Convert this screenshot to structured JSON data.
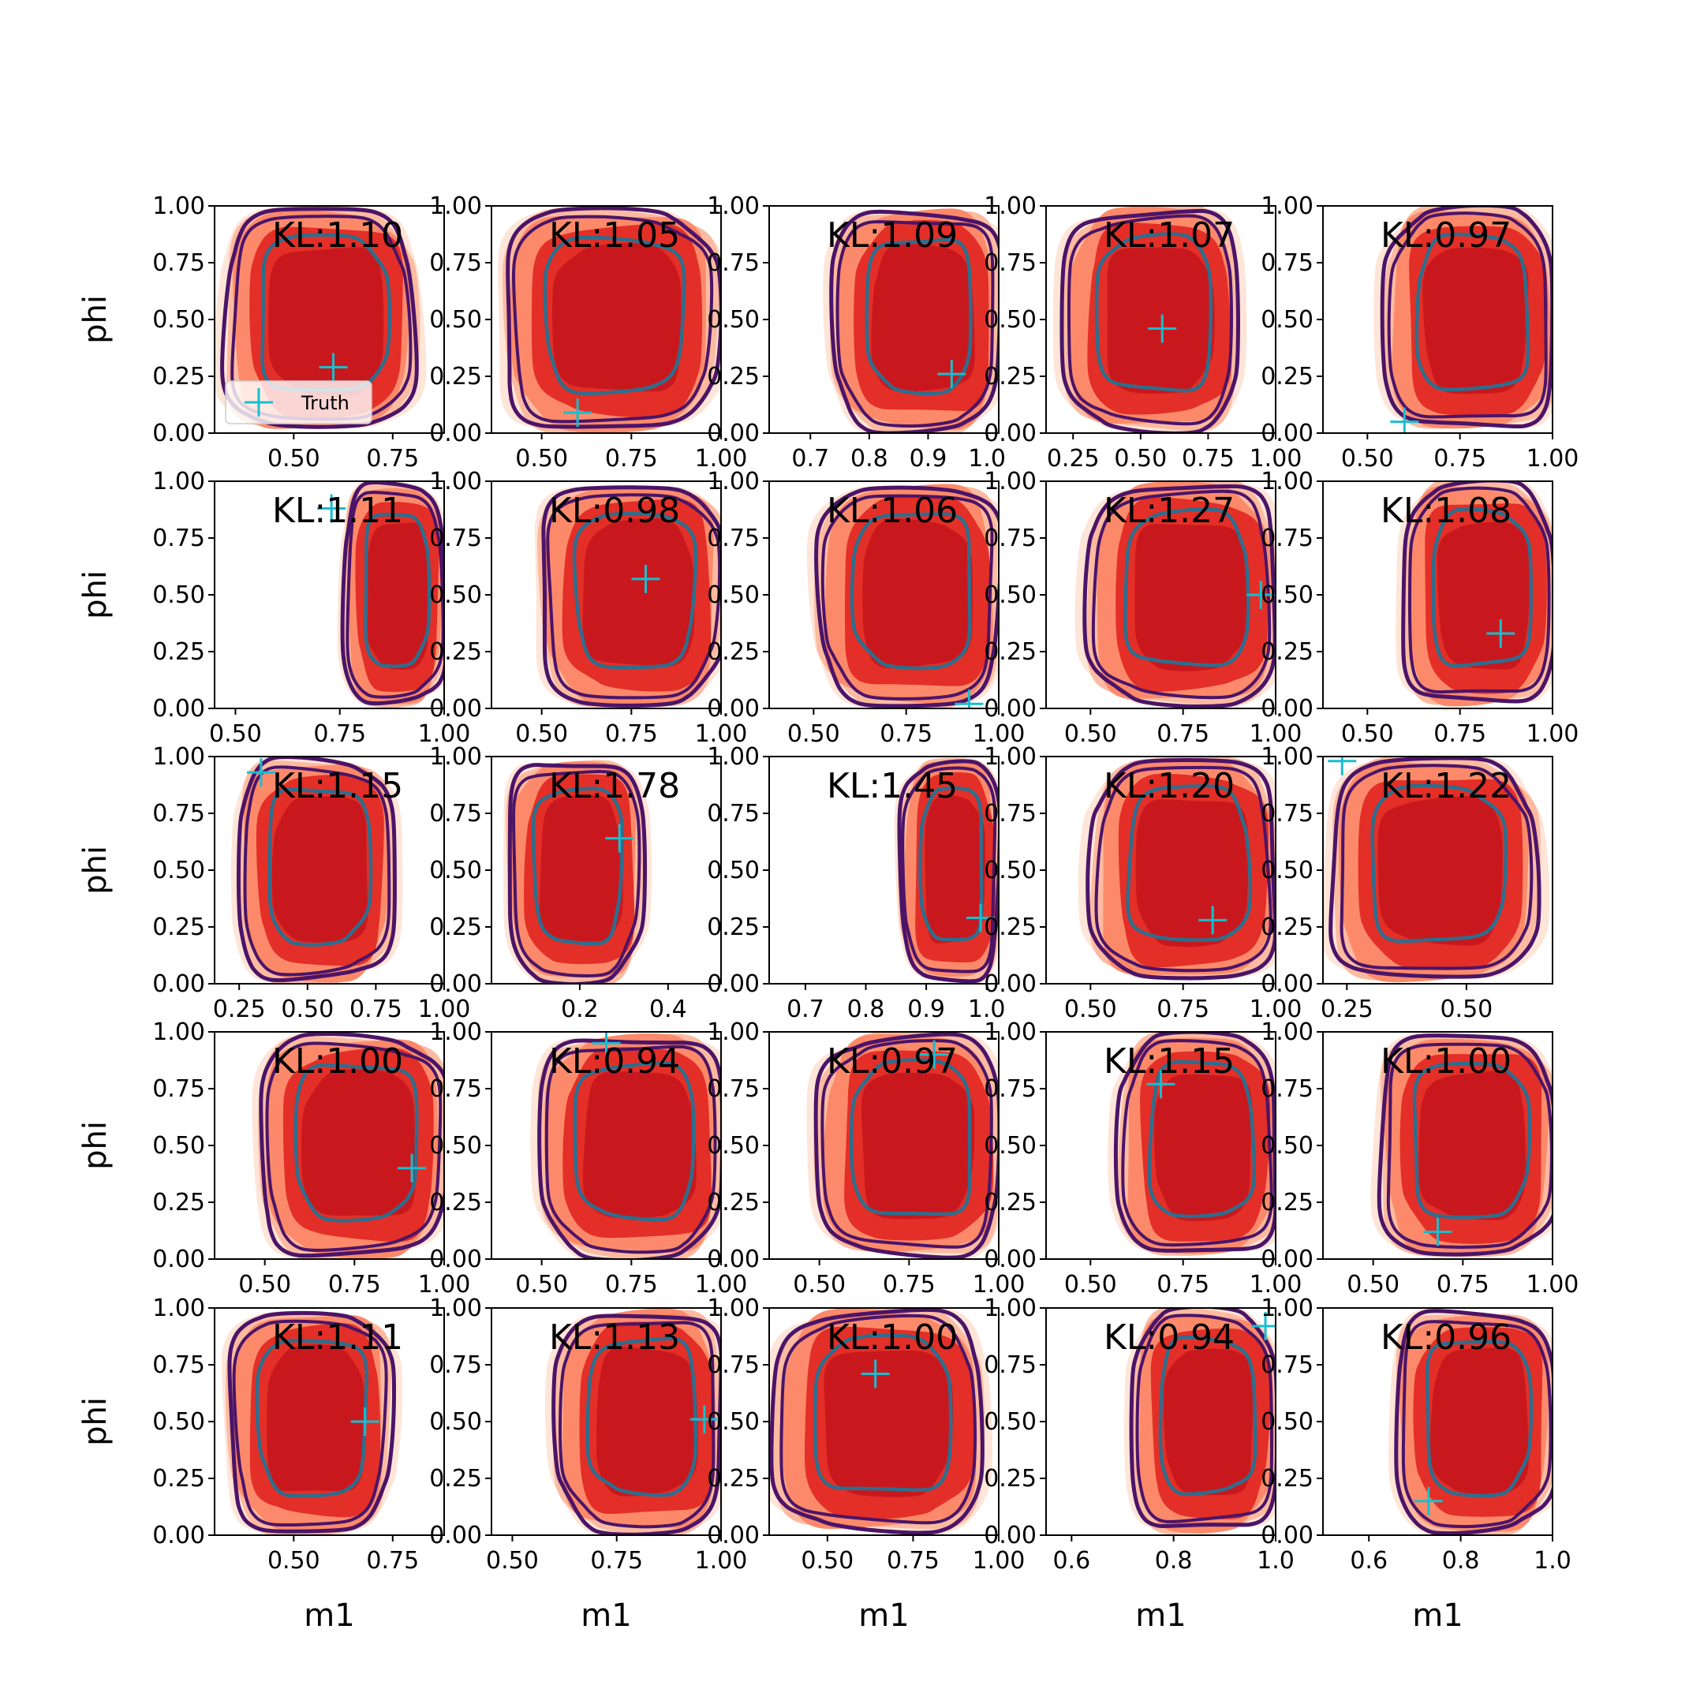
{
  "figure": {
    "grid": "5x5",
    "ylabel": "phi",
    "xlabel": "m1",
    "legend": {
      "label": "Truth",
      "placement": "lower-left",
      "panel": 0
    }
  },
  "colors": {
    "fill_levels": [
      "#fee5d8",
      "#fcbba1",
      "#fc8a6a",
      "#e32f27",
      "#c9181d"
    ],
    "outer_contours": "#4b1468",
    "mid_contour": "#2d6e8e",
    "truth_marker": "#17becf"
  },
  "chart_data": [
    {
      "type": "contour",
      "kl": "KL:1.10",
      "xlim": [
        0.3,
        0.88
      ],
      "ylim": [
        0,
        1
      ],
      "xticks": [
        {
          "value": 0.5,
          "label": "0.50"
        },
        {
          "value": 0.75,
          "label": "0.75"
        }
      ],
      "yticks": [
        "0.00",
        "0.25",
        "0.50",
        "0.75",
        "1.00"
      ],
      "truth": [
        0.6,
        0.29
      ],
      "xrange": [
        0.33,
        0.8
      ],
      "yrange": [
        0.02,
        0.98
      ],
      "shrink": 0.1
    },
    {
      "type": "contour",
      "kl": "KL:1.05",
      "xlim": [
        0.36,
        1.0
      ],
      "ylim": [
        0,
        1
      ],
      "xticks": [
        {
          "value": 0.5,
          "label": "0.50"
        },
        {
          "value": 0.75,
          "label": "0.75"
        },
        {
          "value": 1.0,
          "label": "1.00"
        }
      ],
      "yticks": [
        "0.00",
        "0.25",
        "0.50",
        "0.75",
        "1.00"
      ],
      "truth": [
        0.6,
        0.09
      ],
      "xrange": [
        0.4,
        0.98
      ],
      "yrange": [
        0.02,
        0.98
      ],
      "shrink": 0.12
    },
    {
      "type": "contour",
      "kl": "KL:1.09",
      "xlim": [
        0.63,
        1.02
      ],
      "ylim": [
        0,
        1
      ],
      "xticks": [
        {
          "value": 0.7,
          "label": "0.7"
        },
        {
          "value": 0.8,
          "label": "0.8"
        },
        {
          "value": 0.9,
          "label": "0.9"
        },
        {
          "value": 1.0,
          "label": "1.0"
        }
      ],
      "yticks": [
        "0.00",
        "0.25",
        "0.50",
        "0.75",
        "1.00"
      ],
      "truth": [
        0.94,
        0.26
      ],
      "xrange": [
        0.74,
        1.02
      ],
      "yrange": [
        0.02,
        0.98
      ],
      "shrink": 0.15
    },
    {
      "type": "contour",
      "kl": "KL:1.07",
      "xlim": [
        0.15,
        1.0
      ],
      "ylim": [
        0,
        1
      ],
      "xticks": [
        {
          "value": 0.25,
          "label": "0.25"
        },
        {
          "value": 0.5,
          "label": "0.50"
        },
        {
          "value": 0.75,
          "label": "0.75"
        },
        {
          "value": 1.0,
          "label": "1.00"
        }
      ],
      "yticks": [
        "0.00",
        "0.25",
        "0.50",
        "0.75",
        "1.00"
      ],
      "truth": [
        0.58,
        0.46
      ],
      "xrange": [
        0.22,
        0.86
      ],
      "yrange": [
        0.02,
        0.98
      ],
      "shrink": 0.12
    },
    {
      "type": "contour",
      "kl": "KL:0.97",
      "xlim": [
        0.38,
        1.0
      ],
      "ylim": [
        0,
        1
      ],
      "xticks": [
        {
          "value": 0.5,
          "label": "0.50"
        },
        {
          "value": 0.75,
          "label": "0.75"
        },
        {
          "value": 1.0,
          "label": "1.00"
        }
      ],
      "yticks": [
        "0.00",
        "0.25",
        "0.50",
        "0.75",
        "1.00"
      ],
      "truth": [
        0.6,
        0.05
      ],
      "xrange": [
        0.55,
        1.0
      ],
      "yrange": [
        0.02,
        0.98
      ],
      "shrink": 0.12
    },
    {
      "type": "contour",
      "kl": "KL:1.11",
      "xlim": [
        0.45,
        1.0
      ],
      "ylim": [
        0,
        1
      ],
      "xticks": [
        {
          "value": 0.5,
          "label": "0.50"
        },
        {
          "value": 0.75,
          "label": "0.75"
        },
        {
          "value": 1.0,
          "label": "1.00"
        }
      ],
      "yticks": [
        "0.00",
        "0.25",
        "0.50",
        "0.75",
        "1.00"
      ],
      "truth": [
        0.73,
        0.88
      ],
      "xrange": [
        0.76,
        1.0
      ],
      "yrange": [
        0.02,
        0.98
      ],
      "shrink": 0.15
    },
    {
      "type": "contour",
      "kl": "KL:0.98",
      "xlim": [
        0.36,
        1.0
      ],
      "ylim": [
        0,
        1
      ],
      "xticks": [
        {
          "value": 0.5,
          "label": "0.50"
        },
        {
          "value": 0.75,
          "label": "0.75"
        },
        {
          "value": 1.0,
          "label": "1.00"
        }
      ],
      "yticks": [
        "0.00",
        "0.25",
        "0.50",
        "0.75",
        "1.00"
      ],
      "truth": [
        0.79,
        0.57
      ],
      "xrange": [
        0.5,
        1.0
      ],
      "yrange": [
        0.02,
        0.98
      ],
      "shrink": 0.12
    },
    {
      "type": "contour",
      "kl": "KL:1.06",
      "xlim": [
        0.38,
        1.0
      ],
      "ylim": [
        0,
        1
      ],
      "xticks": [
        {
          "value": 0.5,
          "label": "0.50"
        },
        {
          "value": 0.75,
          "label": "0.75"
        },
        {
          "value": 1.0,
          "label": "1.00"
        }
      ],
      "yticks": [
        "0.00",
        "0.25",
        "0.50",
        "0.75",
        "1.00"
      ],
      "truth": [
        0.92,
        0.02
      ],
      "xrange": [
        0.52,
        1.0
      ],
      "yrange": [
        0.02,
        0.98
      ],
      "shrink": 0.12
    },
    {
      "type": "contour",
      "kl": "KL:1.27",
      "xlim": [
        0.38,
        1.0
      ],
      "ylim": [
        0,
        1
      ],
      "xticks": [
        {
          "value": 0.5,
          "label": "0.50"
        },
        {
          "value": 0.75,
          "label": "0.75"
        },
        {
          "value": 1.0,
          "label": "1.00"
        }
      ],
      "yticks": [
        "0.00",
        "0.25",
        "0.50",
        "0.75",
        "1.00"
      ],
      "truth": [
        0.96,
        0.5
      ],
      "xrange": [
        0.5,
        1.0
      ],
      "yrange": [
        0.02,
        0.98
      ],
      "shrink": 0.12
    },
    {
      "type": "contour",
      "kl": "KL:1.08",
      "xlim": [
        0.38,
        1.0
      ],
      "ylim": [
        0,
        1
      ],
      "xticks": [
        {
          "value": 0.5,
          "label": "0.50"
        },
        {
          "value": 0.75,
          "label": "0.75"
        },
        {
          "value": 1.0,
          "label": "1.00"
        }
      ],
      "yticks": [
        "0.00",
        "0.25",
        "0.50",
        "0.75",
        "1.00"
      ],
      "truth": [
        0.86,
        0.33
      ],
      "xrange": [
        0.6,
        1.0
      ],
      "yrange": [
        0.02,
        0.98
      ],
      "shrink": 0.12
    },
    {
      "type": "contour",
      "kl": "KL:1.15",
      "xlim": [
        0.16,
        1.0
      ],
      "ylim": [
        0,
        1
      ],
      "xticks": [
        {
          "value": 0.25,
          "label": "0.25"
        },
        {
          "value": 0.5,
          "label": "0.50"
        },
        {
          "value": 0.75,
          "label": "0.75"
        },
        {
          "value": 1.0,
          "label": "1.00"
        }
      ],
      "yticks": [
        "0.00",
        "0.25",
        "0.50",
        "0.75",
        "1.00"
      ],
      "truth": [
        0.33,
        0.93
      ],
      "xrange": [
        0.25,
        0.81
      ],
      "yrange": [
        0.02,
        0.98
      ],
      "shrink": 0.12
    },
    {
      "type": "contour",
      "kl": "KL:1.78",
      "xlim": [
        0.0,
        0.52
      ],
      "ylim": [
        0,
        1
      ],
      "xticks": [
        {
          "value": 0.2,
          "label": "0.2"
        },
        {
          "value": 0.4,
          "label": "0.4"
        }
      ],
      "yticks": [
        "0.00",
        "0.25",
        "0.50",
        "0.75",
        "1.00"
      ],
      "truth": [
        0.29,
        0.64
      ],
      "xrange": [
        0.04,
        0.34
      ],
      "yrange": [
        0.02,
        0.98
      ],
      "shrink": 0.12
    },
    {
      "type": "contour",
      "kl": "KL:1.45",
      "xlim": [
        0.64,
        1.02
      ],
      "ylim": [
        0,
        1
      ],
      "xticks": [
        {
          "value": 0.7,
          "label": "0.7"
        },
        {
          "value": 0.8,
          "label": "0.8"
        },
        {
          "value": 0.9,
          "label": "0.9"
        },
        {
          "value": 1.0,
          "label": "1.0"
        }
      ],
      "yticks": [
        "0.00",
        "0.25",
        "0.50",
        "0.75",
        "1.00"
      ],
      "truth": [
        0.99,
        0.29
      ],
      "xrange": [
        0.86,
        1.02
      ],
      "yrange": [
        0.02,
        0.98
      ],
      "shrink": 0.15
    },
    {
      "type": "contour",
      "kl": "KL:1.20",
      "xlim": [
        0.38,
        1.0
      ],
      "ylim": [
        0,
        1
      ],
      "xticks": [
        {
          "value": 0.5,
          "label": "0.50"
        },
        {
          "value": 0.75,
          "label": "0.75"
        },
        {
          "value": 1.0,
          "label": "1.00"
        }
      ],
      "yticks": [
        "0.00",
        "0.25",
        "0.50",
        "0.75",
        "1.00"
      ],
      "truth": [
        0.83,
        0.28
      ],
      "xrange": [
        0.51,
        1.0
      ],
      "yrange": [
        0.02,
        0.98
      ],
      "shrink": 0.12
    },
    {
      "type": "contour",
      "kl": "KL:1.22",
      "xlim": [
        0.2,
        0.68
      ],
      "ylim": [
        0,
        1
      ],
      "xticks": [
        {
          "value": 0.25,
          "label": "0.25"
        },
        {
          "value": 0.5,
          "label": "0.50"
        }
      ],
      "yticks": [
        "0.00",
        "0.25",
        "0.50",
        "0.75",
        "1.00"
      ],
      "truth": [
        0.24,
        0.98
      ],
      "xrange": [
        0.22,
        0.64
      ],
      "yrange": [
        0.02,
        0.98
      ],
      "shrink": 0.12
    },
    {
      "type": "contour",
      "kl": "KL:1.00",
      "xlim": [
        0.36,
        1.0
      ],
      "ylim": [
        0,
        1
      ],
      "xticks": [
        {
          "value": 0.5,
          "label": "0.50"
        },
        {
          "value": 0.75,
          "label": "0.75"
        },
        {
          "value": 1.0,
          "label": "1.00"
        }
      ],
      "yticks": [
        "0.00",
        "0.25",
        "0.50",
        "0.75",
        "1.00"
      ],
      "truth": [
        0.91,
        0.4
      ],
      "xrange": [
        0.49,
        1.0
      ],
      "yrange": [
        0.02,
        0.98
      ],
      "shrink": 0.12
    },
    {
      "type": "contour",
      "kl": "KL:0.94",
      "xlim": [
        0.36,
        1.0
      ],
      "ylim": [
        0,
        1
      ],
      "xticks": [
        {
          "value": 0.5,
          "label": "0.50"
        },
        {
          "value": 0.75,
          "label": "0.75"
        },
        {
          "value": 1.0,
          "label": "1.00"
        }
      ],
      "yticks": [
        "0.00",
        "0.25",
        "0.50",
        "0.75",
        "1.00"
      ],
      "truth": [
        0.68,
        0.95
      ],
      "xrange": [
        0.5,
        1.0
      ],
      "yrange": [
        0.02,
        0.98
      ],
      "shrink": 0.12
    },
    {
      "type": "contour",
      "kl": "KL:0.97",
      "xlim": [
        0.36,
        1.0
      ],
      "ylim": [
        0,
        1
      ],
      "xticks": [
        {
          "value": 0.5,
          "label": "0.50"
        },
        {
          "value": 0.75,
          "label": "0.75"
        },
        {
          "value": 1.0,
          "label": "1.00"
        }
      ],
      "yticks": [
        "0.00",
        "0.25",
        "0.50",
        "0.75",
        "1.00"
      ],
      "truth": [
        0.82,
        0.9
      ],
      "xrange": [
        0.5,
        1.0
      ],
      "yrange": [
        0.02,
        0.98
      ],
      "shrink": 0.12
    },
    {
      "type": "contour",
      "kl": "KL:1.15",
      "xlim": [
        0.38,
        1.0
      ],
      "ylim": [
        0,
        1
      ],
      "xticks": [
        {
          "value": 0.5,
          "label": "0.50"
        },
        {
          "value": 0.75,
          "label": "0.75"
        },
        {
          "value": 1.0,
          "label": "1.00"
        }
      ],
      "yticks": [
        "0.00",
        "0.25",
        "0.50",
        "0.75",
        "1.00"
      ],
      "truth": [
        0.69,
        0.77
      ],
      "xrange": [
        0.58,
        1.0
      ],
      "yrange": [
        0.02,
        0.98
      ],
      "shrink": 0.12
    },
    {
      "type": "contour",
      "kl": "KL:1.00",
      "xlim": [
        0.36,
        1.0
      ],
      "ylim": [
        0,
        1
      ],
      "xticks": [
        {
          "value": 0.5,
          "label": "0.50"
        },
        {
          "value": 0.75,
          "label": "0.75"
        },
        {
          "value": 1.0,
          "label": "1.00"
        }
      ],
      "yticks": [
        "0.00",
        "0.25",
        "0.50",
        "0.75",
        "1.00"
      ],
      "truth": [
        0.68,
        0.12
      ],
      "xrange": [
        0.52,
        1.0
      ],
      "yrange": [
        0.02,
        0.98
      ],
      "shrink": 0.12
    },
    {
      "type": "contour",
      "kl": "KL:1.11",
      "xlim": [
        0.3,
        0.88
      ],
      "ylim": [
        0,
        1
      ],
      "xticks": [
        {
          "value": 0.5,
          "label": "0.50"
        },
        {
          "value": 0.75,
          "label": "0.75"
        }
      ],
      "yticks": [
        "0.00",
        "0.25",
        "0.50",
        "0.75",
        "1.00"
      ],
      "truth": [
        0.68,
        0.5
      ],
      "xrange": [
        0.34,
        0.74
      ],
      "yrange": [
        0.02,
        0.98
      ],
      "shrink": 0.1
    },
    {
      "type": "contour",
      "kl": "KL:1.13",
      "xlim": [
        0.45,
        1.0
      ],
      "ylim": [
        0,
        1
      ],
      "xticks": [
        {
          "value": 0.5,
          "label": "0.50"
        },
        {
          "value": 0.75,
          "label": "0.75"
        },
        {
          "value": 1.0,
          "label": "1.00"
        }
      ],
      "yticks": [
        "0.00",
        "0.25",
        "0.50",
        "0.75",
        "1.00"
      ],
      "truth": [
        0.96,
        0.51
      ],
      "xrange": [
        0.61,
        1.0
      ],
      "yrange": [
        0.02,
        0.98
      ],
      "shrink": 0.12
    },
    {
      "type": "contour",
      "kl": "KL:1.00",
      "xlim": [
        0.33,
        1.0
      ],
      "ylim": [
        0,
        1
      ],
      "xticks": [
        {
          "value": 0.5,
          "label": "0.50"
        },
        {
          "value": 0.75,
          "label": "0.75"
        },
        {
          "value": 1.0,
          "label": "1.00"
        }
      ],
      "yticks": [
        "0.00",
        "0.25",
        "0.50",
        "0.75",
        "1.00"
      ],
      "truth": [
        0.64,
        0.71
      ],
      "xrange": [
        0.35,
        0.95
      ],
      "yrange": [
        0.02,
        0.98
      ],
      "shrink": 0.12
    },
    {
      "type": "contour",
      "kl": "KL:0.94",
      "xlim": [
        0.55,
        1.0
      ],
      "ylim": [
        0,
        1
      ],
      "xticks": [
        {
          "value": 0.6,
          "label": "0.6"
        },
        {
          "value": 0.8,
          "label": "0.8"
        },
        {
          "value": 1.0,
          "label": "1.0"
        }
      ],
      "yticks": [
        "0.00",
        "0.25",
        "0.50",
        "0.75",
        "1.00"
      ],
      "truth": [
        0.98,
        0.92
      ],
      "xrange": [
        0.72,
        1.0
      ],
      "yrange": [
        0.02,
        0.98
      ],
      "shrink": 0.12
    },
    {
      "type": "contour",
      "kl": "KL:0.96",
      "xlim": [
        0.5,
        1.0
      ],
      "ylim": [
        0,
        1
      ],
      "xticks": [
        {
          "value": 0.6,
          "label": "0.6"
        },
        {
          "value": 0.8,
          "label": "0.8"
        },
        {
          "value": 1.0,
          "label": "1.0"
        }
      ],
      "yticks": [
        "0.00",
        "0.25",
        "0.50",
        "0.75",
        "1.00"
      ],
      "truth": [
        0.73,
        0.15
      ],
      "xrange": [
        0.66,
        1.0
      ],
      "yrange": [
        0.02,
        0.98
      ],
      "shrink": 0.12
    }
  ]
}
